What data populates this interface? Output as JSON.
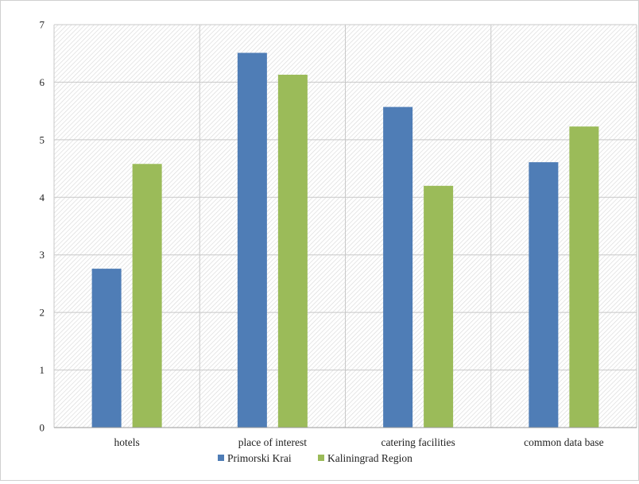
{
  "chart_data": {
    "type": "bar",
    "title": "",
    "xlabel": "",
    "ylabel": "",
    "categories": [
      "hotels",
      "place of interest",
      "catering facilities",
      "common data base"
    ],
    "series": [
      {
        "name": "Primorski Krai",
        "color": "#4f7db6",
        "values": [
          2.76,
          6.51,
          5.57,
          4.61
        ]
      },
      {
        "name": "Kaliningrad Region",
        "color": "#9bbb59",
        "values": [
          4.58,
          6.13,
          4.2,
          5.23
        ]
      }
    ],
    "ylim": [
      0,
      7
    ],
    "yticks": [
      "0",
      "1",
      "2",
      "3",
      "4",
      "5",
      "6",
      "7"
    ],
    "grid": true,
    "legend_position": "bottom"
  }
}
